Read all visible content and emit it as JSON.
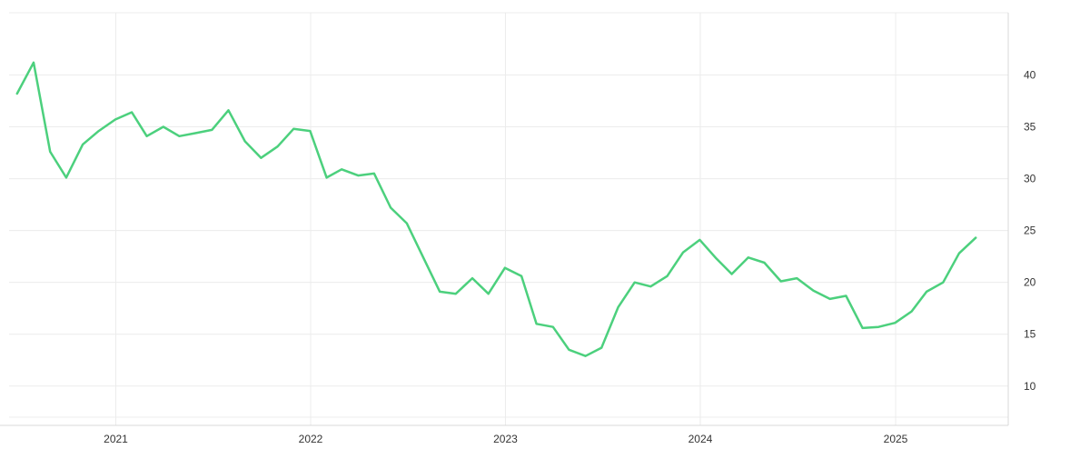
{
  "chart_data": {
    "type": "line",
    "title": "",
    "xlabel": "",
    "ylabel": "",
    "x_tick_labels": [
      "2021",
      "2022",
      "2023",
      "2024",
      "2025"
    ],
    "y_tick_labels": [
      "10",
      "15",
      "20",
      "25",
      "30",
      "35",
      "40"
    ],
    "ylim": [
      7,
      46
    ],
    "xlim": [
      "2020-06-15",
      "2025-07-31"
    ],
    "grid": true,
    "y_axis_side": "right",
    "colors": {
      "line": "#4cd07d",
      "grid": "#ececec",
      "axis": "#d9d9d9",
      "text": "#333333"
    },
    "series": [
      {
        "x": [
          "2020-06-30",
          "2020-07-31",
          "2020-08-31",
          "2020-09-30",
          "2020-10-31",
          "2020-11-30",
          "2020-12-31",
          "2021-01-31",
          "2021-02-28",
          "2021-03-31",
          "2021-04-30",
          "2021-05-31",
          "2021-06-30",
          "2021-07-31",
          "2021-08-31",
          "2021-09-30",
          "2021-10-31",
          "2021-11-30",
          "2021-12-31",
          "2022-01-31",
          "2022-02-28",
          "2022-03-31",
          "2022-04-30",
          "2022-05-31",
          "2022-06-30",
          "2022-07-31",
          "2022-08-31",
          "2022-09-30",
          "2022-10-31",
          "2022-11-30",
          "2022-12-31",
          "2023-01-31",
          "2023-02-28",
          "2023-03-31",
          "2023-04-30",
          "2023-05-31",
          "2023-06-30",
          "2023-07-31",
          "2023-08-31",
          "2023-09-30",
          "2023-10-31",
          "2023-11-30",
          "2023-12-31",
          "2024-01-31",
          "2024-02-29",
          "2024-03-31",
          "2024-04-30",
          "2024-05-31",
          "2024-06-30",
          "2024-07-31",
          "2024-08-31",
          "2024-09-30",
          "2024-10-31",
          "2024-11-30",
          "2024-12-31",
          "2025-01-31",
          "2025-02-28",
          "2025-03-31",
          "2025-04-30",
          "2025-05-31"
        ],
        "values": [
          38.2,
          41.2,
          32.6,
          30.1,
          33.3,
          34.6,
          35.7,
          36.4,
          34.1,
          35.0,
          34.1,
          34.4,
          34.7,
          36.6,
          33.6,
          32.0,
          33.1,
          34.8,
          34.6,
          30.1,
          30.9,
          30.3,
          30.5,
          27.2,
          25.7,
          22.4,
          19.1,
          18.9,
          20.4,
          18.9,
          21.4,
          20.6,
          16.0,
          15.7,
          13.5,
          12.9,
          13.7,
          17.6,
          20.0,
          19.6,
          20.6,
          22.9,
          24.1,
          22.3,
          20.8,
          22.4,
          21.9,
          20.1,
          20.4,
          19.2,
          18.4,
          18.7,
          15.6,
          15.7,
          16.1,
          17.2,
          19.1,
          20.0,
          22.8,
          24.3
        ]
      }
    ]
  }
}
